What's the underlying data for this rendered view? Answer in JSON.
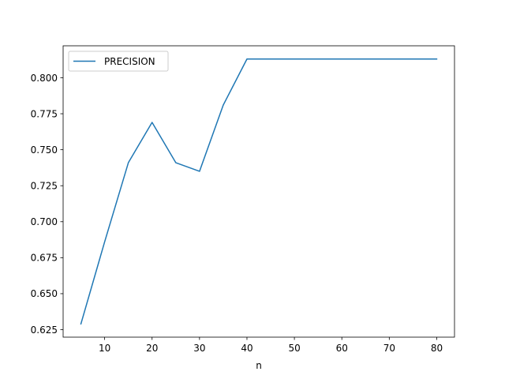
{
  "chart_data": {
    "type": "line",
    "xlabel": "n",
    "ylabel": "",
    "title": "",
    "xlim": [
      1.25,
      83.75
    ],
    "ylim": [
      0.6198,
      0.8222
    ],
    "xticks": [
      10,
      20,
      30,
      40,
      50,
      60,
      70,
      80
    ],
    "yticks": [
      0.625,
      0.65,
      0.675,
      0.7,
      0.725,
      0.75,
      0.775,
      0.8
    ],
    "ytick_format": 3,
    "grid": false,
    "legend_position": "upper-left",
    "series": [
      {
        "name": "PRECISION",
        "color": "#1f77b4",
        "x": [
          5,
          10,
          15,
          20,
          25,
          30,
          35,
          40,
          45,
          50,
          55,
          60,
          65,
          70,
          75,
          80
        ],
        "y": [
          0.629,
          0.686,
          0.741,
          0.769,
          0.741,
          0.735,
          0.781,
          0.813,
          0.813,
          0.813,
          0.813,
          0.813,
          0.813,
          0.813,
          0.813,
          0.813
        ]
      }
    ]
  }
}
